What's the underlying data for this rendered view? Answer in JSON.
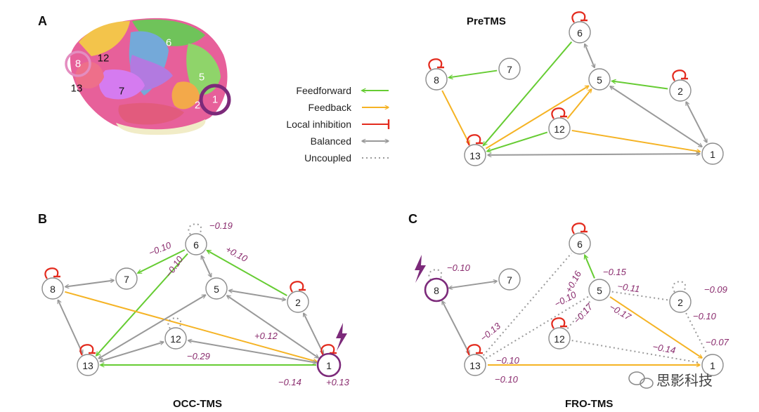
{
  "colors": {
    "feedforward": "#66cc33",
    "feedback": "#f5b324",
    "inhibition": "#e32b1e",
    "balanced": "#999999",
    "uncoupled": "#9a9a9a",
    "stim": "#7c2a7a",
    "weight_label": "#8a2c6e"
  },
  "panel_a": {
    "letter": "A",
    "title": "PreTMS"
  },
  "panel_b": {
    "letter": "B",
    "title": "OCC-TMS"
  },
  "panel_c": {
    "letter": "C",
    "title": "FRO-TMS"
  },
  "brain_labels": [
    "8",
    "12",
    "13",
    "7",
    "6",
    "5",
    "2",
    "1"
  ],
  "legend": [
    {
      "label": "Feedforward",
      "kind": "feedforward"
    },
    {
      "label": "Feedback",
      "kind": "feedback"
    },
    {
      "label": "Local inhibition",
      "kind": "inhibition"
    },
    {
      "label": "Balanced",
      "kind": "balanced"
    },
    {
      "label": "Uncoupled",
      "kind": "uncoupled"
    }
  ],
  "graphs": {
    "pre": {
      "nodes": [
        "6",
        "7",
        "8",
        "5",
        "2",
        "12",
        "13",
        "1"
      ],
      "self_loops": [
        "6",
        "8",
        "2",
        "12",
        "13"
      ],
      "edges": [
        {
          "from": "7",
          "to": "8",
          "type": "feedforward"
        },
        {
          "from": "6",
          "to": "13",
          "type": "feedforward"
        },
        {
          "from": "2",
          "to": "5",
          "type": "feedforward"
        },
        {
          "from": "12",
          "to": "13",
          "type": "feedforward"
        },
        {
          "from": "8",
          "to": "13",
          "type": "feedback"
        },
        {
          "from": "13",
          "to": "5",
          "type": "feedback"
        },
        {
          "from": "12",
          "to": "5",
          "type": "feedback"
        },
        {
          "from": "12",
          "to": "1",
          "type": "feedback"
        },
        {
          "from": "6",
          "to": "5",
          "type": "balanced"
        },
        {
          "from": "5",
          "to": "1",
          "type": "balanced"
        },
        {
          "from": "2",
          "to": "1",
          "type": "balanced"
        },
        {
          "from": "13",
          "to": "1",
          "type": "balanced"
        }
      ],
      "weights": []
    },
    "occ": {
      "nodes": [
        "6",
        "7",
        "8",
        "5",
        "2",
        "12",
        "13",
        "1"
      ],
      "stim_node": "1",
      "self_loops": [
        "8",
        "2",
        "13",
        "1"
      ],
      "dotted_loops": [
        "6",
        "12"
      ],
      "edges": [
        {
          "from": "6",
          "to": "7",
          "type": "feedforward"
        },
        {
          "from": "6",
          "to": "13",
          "type": "feedforward"
        },
        {
          "from": "2",
          "to": "6",
          "type": "feedforward"
        },
        {
          "from": "1",
          "to": "13",
          "type": "feedforward"
        },
        {
          "from": "8",
          "to": "1",
          "type": "feedback"
        },
        {
          "from": "7",
          "to": "8",
          "type": "balanced"
        },
        {
          "from": "8",
          "to": "13",
          "type": "balanced"
        },
        {
          "from": "6",
          "to": "5",
          "type": "balanced"
        },
        {
          "from": "2",
          "to": "5",
          "type": "balanced"
        },
        {
          "from": "13",
          "to": "5",
          "type": "balanced"
        },
        {
          "from": "12",
          "to": "13",
          "type": "balanced"
        },
        {
          "from": "12",
          "to": "1",
          "type": "balanced"
        },
        {
          "from": "5",
          "to": "1",
          "type": "balanced"
        },
        {
          "from": "2",
          "to": "1",
          "type": "balanced"
        }
      ],
      "weights": [
        "−0.19",
        "−0.10",
        "+0.10",
        "−0.10",
        "+0.12",
        "−0.29",
        "−0.14",
        "+0.13"
      ]
    },
    "fro": {
      "nodes": [
        "6",
        "7",
        "8",
        "5",
        "2",
        "12",
        "13",
        "1"
      ],
      "stim_node": "8",
      "self_loops": [
        "6",
        "12",
        "13"
      ],
      "dotted_loops": [
        "8",
        "2"
      ],
      "edges": [
        {
          "from": "7",
          "to": "8",
          "type": "balanced"
        },
        {
          "from": "8",
          "to": "13",
          "type": "balanced"
        },
        {
          "from": "5",
          "to": "6",
          "type": "feedforward"
        },
        {
          "from": "5",
          "to": "1",
          "type": "feedback"
        },
        {
          "from": "13",
          "to": "1",
          "type": "feedback"
        },
        {
          "from": "13",
          "to": "6",
          "type": "uncoupled"
        },
        {
          "from": "13",
          "to": "5",
          "type": "uncoupled"
        },
        {
          "from": "12",
          "to": "5",
          "type": "uncoupled"
        },
        {
          "from": "5",
          "to": "2",
          "type": "uncoupled"
        },
        {
          "from": "2",
          "to": "1",
          "type": "uncoupled"
        },
        {
          "from": "12",
          "to": "1",
          "type": "uncoupled"
        }
      ],
      "weights": [
        "−0.10",
        "−0.15",
        "+0.16",
        "−0.11",
        "−0.09",
        "−0.13",
        "−0.10",
        "−0.17",
        "−0.17",
        "−0.10",
        "−0.14",
        "−0.07",
        "−0.10",
        "−0.10"
      ]
    }
  },
  "watermark": "思影科技"
}
